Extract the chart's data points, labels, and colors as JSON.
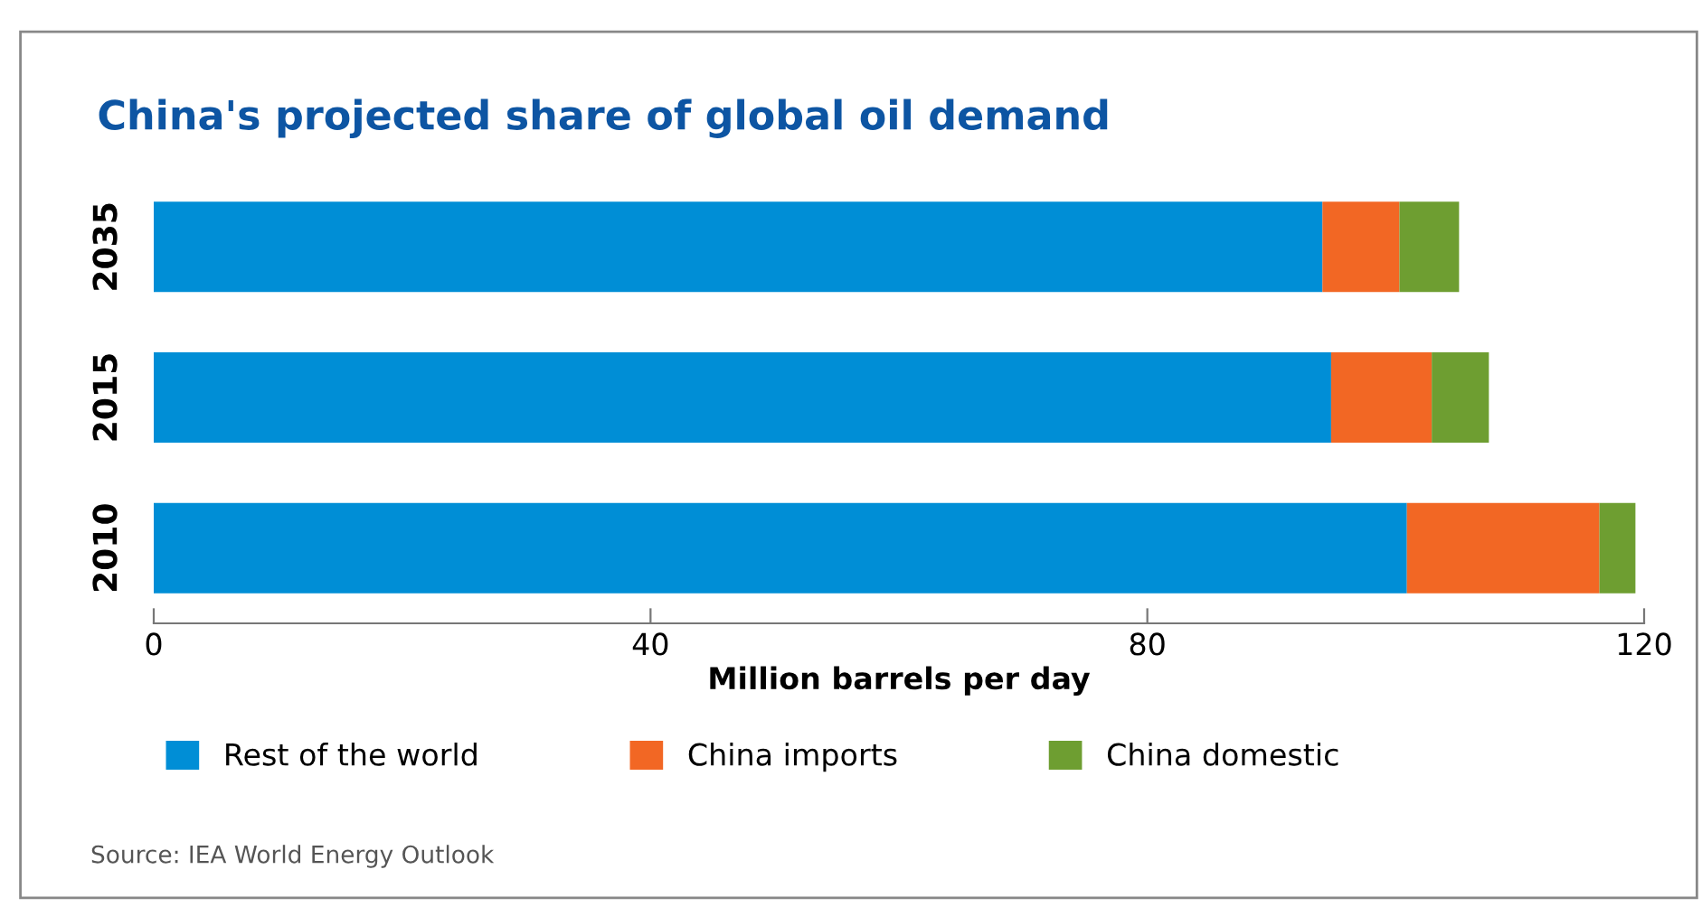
{
  "chart_data": {
    "type": "bar",
    "orientation": "horizontal",
    "stacked": true,
    "title": "China's projected share of global oil demand",
    "categories": [
      "2035",
      "2015",
      "2010"
    ],
    "series": [
      {
        "name": "Rest of the world",
        "color": "#008ed6",
        "values": [
          94.1,
          94.8,
          100.9
        ]
      },
      {
        "name": "China imports",
        "color": "#f26724",
        "values": [
          6.2,
          8.1,
          15.5
        ]
      },
      {
        "name": "China domestic",
        "color": "#6e9e31",
        "values": [
          4.8,
          4.6,
          2.9
        ]
      }
    ],
    "xlim": [
      0,
      120
    ],
    "xticks": [
      0,
      40,
      80,
      120
    ],
    "xlabel": "Million barrels per day",
    "grid": false,
    "legend": "bottom",
    "annotations": [
      "Source: IEA World Energy Outlook"
    ]
  }
}
